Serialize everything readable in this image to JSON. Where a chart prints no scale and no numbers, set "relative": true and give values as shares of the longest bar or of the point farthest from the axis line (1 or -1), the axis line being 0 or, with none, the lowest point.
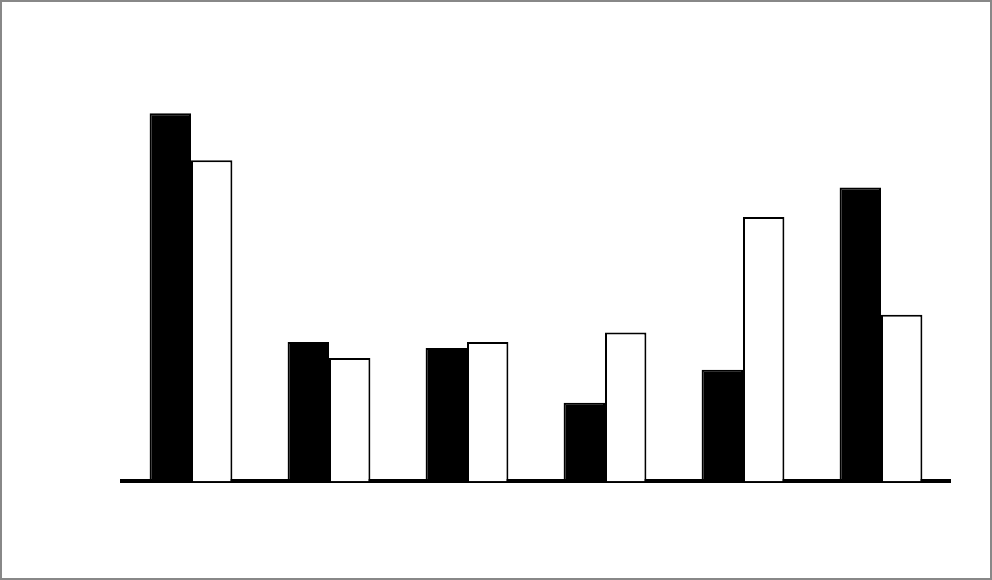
{
  "chart_data": {
    "type": "bar",
    "relative": true,
    "categories": [
      null,
      null,
      null,
      null,
      null,
      null
    ],
    "series": [
      {
        "color": "#000000",
        "values": [
          1,
          0.378,
          0.362,
          0.213,
          0.303,
          0.798
        ]
      },
      {
        "color": "#ffffff",
        "values": [
          0.872,
          0.335,
          0.378,
          0.404,
          0.718,
          0.452
        ]
      }
    ],
    "grid": false,
    "legend": false
  }
}
